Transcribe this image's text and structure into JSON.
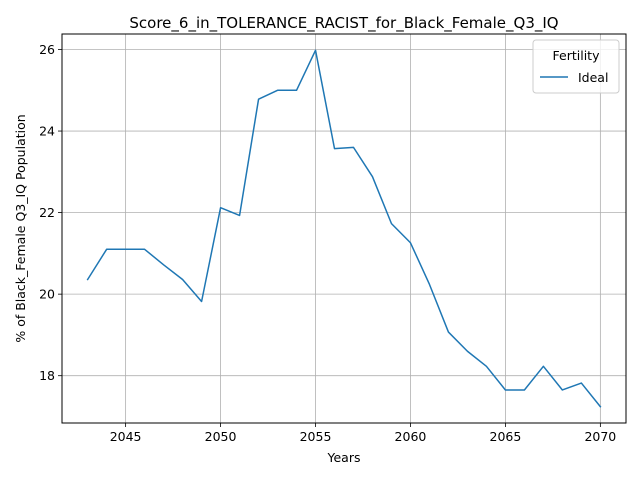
{
  "chart_data": {
    "type": "line",
    "title": "Score_6_in_TOLERANCE_RACIST_for_Black_Female_Q3_IQ",
    "xlabel": "Years",
    "ylabel": "% of Black_Female Q3_IQ Population",
    "xlim": [
      2041.65,
      2071.35
    ],
    "ylim": [
      16.84,
      26.38
    ],
    "xticks": [
      2045,
      2050,
      2055,
      2060,
      2065,
      2070
    ],
    "yticks": [
      18,
      20,
      22,
      24,
      26
    ],
    "grid": true,
    "legend": {
      "title": "Fertility",
      "placement": "top-right"
    },
    "series": [
      {
        "name": "Ideal",
        "color": "#1f77b4",
        "x": [
          2043,
          2044,
          2045,
          2046,
          2047,
          2048,
          2049,
          2050,
          2051,
          2052,
          2053,
          2054,
          2055,
          2056,
          2057,
          2058,
          2059,
          2060,
          2061,
          2062,
          2063,
          2064,
          2065,
          2066,
          2067,
          2068,
          2069,
          2070
        ],
        "y": [
          20.36,
          21.1,
          21.1,
          21.1,
          20.72,
          20.36,
          19.82,
          22.12,
          21.93,
          24.78,
          25.0,
          25.0,
          25.98,
          23.57,
          23.6,
          22.88,
          21.73,
          21.26,
          20.24,
          19.07,
          18.6,
          18.23,
          17.65,
          17.65,
          18.23,
          17.65,
          17.82,
          17.24
        ]
      }
    ]
  }
}
